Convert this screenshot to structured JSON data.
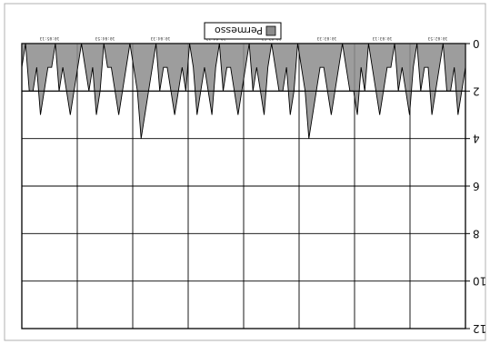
{
  "chart_data": {
    "type": "area",
    "orientation": "rotated-180",
    "title": "",
    "xlabel": "",
    "ylabel": "",
    "ylim": [
      0,
      12
    ],
    "y_ticks": [
      0,
      2,
      4,
      6,
      8,
      10,
      12
    ],
    "y_tick_labels": [
      "0",
      "2",
      "4",
      "6",
      "8",
      "10",
      "12"
    ],
    "x_tick_labels": [
      "10:02:53",
      "10:03:13",
      "10:03:33",
      "10:03:53",
      "10:04:13",
      "10:04:33",
      "10:04:53",
      "10:05:13"
    ],
    "grid": true,
    "legend": {
      "position": "top-center",
      "entries": [
        {
          "name": "Permesso",
          "color": "#8c8c8c"
        }
      ]
    },
    "reference_line": {
      "value": 2,
      "label": ""
    },
    "series": [
      {
        "name": "Permesso",
        "color": "#8c8c8c",
        "values": [
          1,
          2,
          3,
          1,
          2,
          2,
          0,
          1,
          2,
          3,
          1,
          1,
          2,
          0,
          1,
          3,
          2,
          1,
          2,
          0,
          1,
          1,
          2,
          3,
          2,
          1,
          0,
          2,
          1,
          3,
          2,
          2,
          1,
          0,
          1,
          2,
          3,
          2,
          1,
          1,
          2,
          3,
          4,
          2,
          1,
          0,
          2,
          3,
          1,
          2,
          2,
          1,
          0,
          1,
          3,
          2,
          1,
          2,
          0,
          1,
          2,
          3,
          2,
          1,
          1,
          2,
          0,
          1,
          3,
          2,
          1,
          2,
          3,
          1,
          0,
          2,
          1,
          2,
          3,
          2,
          1,
          1,
          2,
          0,
          1,
          2,
          3,
          4,
          2,
          1,
          0,
          1,
          2,
          3,
          2,
          1,
          1,
          0,
          2,
          3,
          1,
          2,
          1,
          0,
          1,
          2,
          3,
          2,
          1,
          2,
          0,
          1,
          1,
          2,
          3,
          1,
          2,
          2,
          0,
          1
        ]
      }
    ]
  }
}
